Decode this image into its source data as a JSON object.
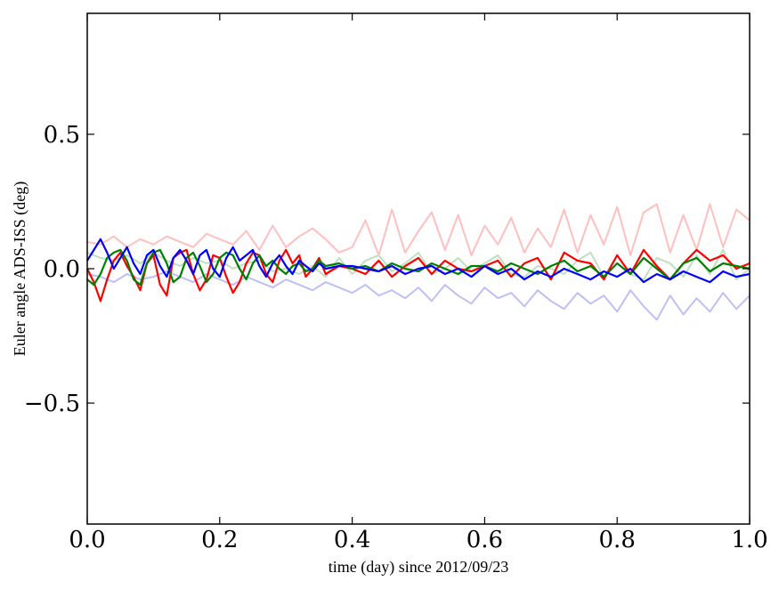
{
  "chart_data": {
    "type": "line",
    "xlabel": "time (day) since 2012/09/23",
    "ylabel": "Euler angle ADS-ISS (deg)",
    "xlim": [
      0.0,
      1.0
    ],
    "ylim": [
      -0.95,
      0.95
    ],
    "xticks": [
      0.0,
      0.2,
      0.4,
      0.6,
      0.8,
      1.0
    ],
    "xtick_labels": [
      "0.0",
      "0.2",
      "0.4",
      "0.6",
      "0.8",
      "1.0"
    ],
    "yticks": [
      -0.5,
      0.0,
      0.5
    ],
    "ytick_labels": [
      "−0.5",
      "0.0",
      "0.5"
    ],
    "grid": false,
    "legend": "none",
    "series": [
      {
        "color": "#ffbfbf",
        "x": [
          0.0,
          0.02,
          0.04,
          0.06,
          0.08,
          0.1,
          0.12,
          0.14,
          0.16,
          0.18,
          0.2,
          0.22,
          0.24,
          0.26,
          0.28,
          0.3,
          0.32,
          0.34,
          0.36,
          0.38,
          0.4,
          0.42,
          0.44,
          0.46,
          0.48,
          0.5,
          0.52,
          0.54,
          0.56,
          0.58,
          0.6,
          0.62,
          0.64,
          0.66,
          0.68,
          0.7,
          0.72,
          0.74,
          0.76,
          0.78,
          0.8,
          0.82,
          0.84,
          0.86,
          0.88,
          0.9,
          0.92,
          0.94,
          0.96,
          0.98,
          1.0
        ],
        "y": [
          0.1,
          0.09,
          0.12,
          0.08,
          0.11,
          0.09,
          0.12,
          0.1,
          0.08,
          0.13,
          0.11,
          0.09,
          0.14,
          0.07,
          0.16,
          0.08,
          0.12,
          0.15,
          0.11,
          0.06,
          0.08,
          0.18,
          0.05,
          0.22,
          0.06,
          0.14,
          0.21,
          0.07,
          0.2,
          0.05,
          0.16,
          0.09,
          0.19,
          0.06,
          0.15,
          0.08,
          0.22,
          0.06,
          0.2,
          0.09,
          0.23,
          0.05,
          0.21,
          0.24,
          0.06,
          0.2,
          0.07,
          0.24,
          0.08,
          0.22,
          0.18
        ]
      },
      {
        "color": "#bfdfbf",
        "x": [
          0.0,
          0.02,
          0.04,
          0.06,
          0.08,
          0.1,
          0.12,
          0.14,
          0.16,
          0.18,
          0.2,
          0.22,
          0.24,
          0.26,
          0.28,
          0.3,
          0.32,
          0.34,
          0.36,
          0.38,
          0.4,
          0.42,
          0.44,
          0.46,
          0.48,
          0.5,
          0.52,
          0.54,
          0.56,
          0.58,
          0.6,
          0.62,
          0.64,
          0.66,
          0.68,
          0.7,
          0.72,
          0.74,
          0.76,
          0.78,
          0.8,
          0.82,
          0.84,
          0.86,
          0.88,
          0.9,
          0.92,
          0.94,
          0.96,
          0.98,
          1.0
        ],
        "y": [
          0.06,
          0.04,
          0.03,
          0.05,
          0.02,
          0.06,
          0.03,
          0.01,
          0.04,
          0.02,
          0.03,
          0.0,
          0.02,
          0.03,
          -0.01,
          0.0,
          -0.02,
          0.01,
          -0.03,
          0.04,
          -0.02,
          0.03,
          0.05,
          -0.01,
          0.02,
          0.06,
          -0.02,
          0.0,
          0.04,
          -0.01,
          0.02,
          0.05,
          -0.02,
          -0.03,
          0.01,
          0.0,
          -0.02,
          0.03,
          0.06,
          -0.03,
          0.05,
          -0.02,
          -0.04,
          0.04,
          0.02,
          -0.03,
          0.05,
          -0.02,
          0.07,
          -0.04,
          0.0
        ]
      },
      {
        "color": "#bfbff7",
        "x": [
          0.0,
          0.02,
          0.04,
          0.06,
          0.08,
          0.1,
          0.12,
          0.14,
          0.16,
          0.18,
          0.2,
          0.22,
          0.24,
          0.26,
          0.28,
          0.3,
          0.32,
          0.34,
          0.36,
          0.38,
          0.4,
          0.42,
          0.44,
          0.46,
          0.48,
          0.5,
          0.52,
          0.54,
          0.56,
          0.58,
          0.6,
          0.62,
          0.64,
          0.66,
          0.68,
          0.7,
          0.72,
          0.74,
          0.76,
          0.78,
          0.8,
          0.82,
          0.84,
          0.86,
          0.88,
          0.9,
          0.92,
          0.94,
          0.96,
          0.98,
          1.0
        ],
        "y": [
          -0.02,
          -0.03,
          -0.05,
          -0.02,
          -0.04,
          -0.03,
          -0.01,
          -0.03,
          -0.05,
          -0.02,
          -0.04,
          -0.06,
          -0.03,
          -0.05,
          -0.07,
          -0.04,
          -0.06,
          -0.08,
          -0.05,
          -0.07,
          -0.09,
          -0.06,
          -0.1,
          -0.08,
          -0.11,
          -0.07,
          -0.12,
          -0.06,
          -0.1,
          -0.13,
          -0.07,
          -0.11,
          -0.09,
          -0.14,
          -0.08,
          -0.12,
          -0.15,
          -0.09,
          -0.13,
          -0.1,
          -0.16,
          -0.08,
          -0.14,
          -0.19,
          -0.1,
          -0.17,
          -0.11,
          -0.16,
          -0.09,
          -0.15,
          -0.1
        ]
      },
      {
        "color": "#ff0000",
        "x": [
          0.0,
          0.01,
          0.02,
          0.03,
          0.04,
          0.05,
          0.06,
          0.07,
          0.08,
          0.09,
          0.1,
          0.11,
          0.12,
          0.13,
          0.14,
          0.15,
          0.16,
          0.17,
          0.18,
          0.19,
          0.2,
          0.21,
          0.22,
          0.23,
          0.24,
          0.25,
          0.26,
          0.27,
          0.28,
          0.29,
          0.3,
          0.31,
          0.32,
          0.33,
          0.34,
          0.35,
          0.36,
          0.38,
          0.4,
          0.42,
          0.44,
          0.46,
          0.48,
          0.5,
          0.52,
          0.54,
          0.56,
          0.58,
          0.6,
          0.62,
          0.64,
          0.66,
          0.68,
          0.7,
          0.72,
          0.74,
          0.76,
          0.78,
          0.8,
          0.82,
          0.84,
          0.86,
          0.88,
          0.9,
          0.92,
          0.94,
          0.96,
          0.98,
          1.0
        ],
        "y": [
          0.0,
          -0.05,
          -0.12,
          -0.04,
          0.03,
          0.06,
          0.01,
          -0.03,
          -0.08,
          0.02,
          0.05,
          -0.06,
          -0.1,
          0.04,
          0.06,
          0.07,
          -0.02,
          -0.08,
          -0.04,
          0.05,
          0.04,
          -0.03,
          -0.09,
          -0.05,
          0.02,
          0.06,
          0.05,
          -0.02,
          -0.05,
          0.03,
          0.07,
          0.02,
          0.05,
          -0.03,
          0.0,
          0.04,
          -0.02,
          0.01,
          0.0,
          -0.02,
          0.03,
          -0.03,
          0.01,
          0.04,
          -0.02,
          0.03,
          0.0,
          -0.01,
          0.01,
          0.03,
          -0.03,
          0.02,
          0.04,
          -0.04,
          0.06,
          0.03,
          0.02,
          -0.04,
          0.05,
          -0.02,
          0.07,
          0.01,
          -0.04,
          0.02,
          0.07,
          0.03,
          0.05,
          0.0,
          0.02
        ]
      },
      {
        "color": "#008000",
        "x": [
          0.0,
          0.01,
          0.02,
          0.03,
          0.04,
          0.05,
          0.06,
          0.07,
          0.08,
          0.09,
          0.1,
          0.11,
          0.12,
          0.13,
          0.14,
          0.15,
          0.16,
          0.17,
          0.18,
          0.19,
          0.2,
          0.21,
          0.22,
          0.23,
          0.24,
          0.25,
          0.26,
          0.27,
          0.28,
          0.29,
          0.3,
          0.31,
          0.32,
          0.33,
          0.34,
          0.35,
          0.36,
          0.38,
          0.4,
          0.42,
          0.44,
          0.46,
          0.48,
          0.5,
          0.52,
          0.54,
          0.56,
          0.58,
          0.6,
          0.62,
          0.64,
          0.66,
          0.68,
          0.7,
          0.72,
          0.74,
          0.76,
          0.78,
          0.8,
          0.82,
          0.84,
          0.86,
          0.88,
          0.9,
          0.92,
          0.94,
          0.96,
          0.98,
          1.0
        ],
        "y": [
          -0.04,
          -0.06,
          -0.02,
          0.04,
          0.06,
          0.07,
          0.03,
          -0.04,
          -0.06,
          0.02,
          0.06,
          0.07,
          0.02,
          -0.05,
          -0.03,
          0.04,
          0.06,
          0.01,
          -0.05,
          -0.02,
          0.04,
          0.06,
          0.05,
          0.0,
          -0.04,
          0.02,
          0.05,
          0.01,
          0.03,
          0.0,
          -0.02,
          0.01,
          0.02,
          -0.01,
          0.0,
          0.03,
          0.01,
          0.02,
          0.0,
          0.01,
          -0.01,
          0.02,
          0.0,
          -0.01,
          0.02,
          0.0,
          -0.02,
          0.01,
          0.01,
          -0.01,
          0.02,
          0.0,
          -0.02,
          0.01,
          0.03,
          -0.01,
          0.01,
          -0.03,
          0.02,
          -0.02,
          0.04,
          0.0,
          -0.04,
          0.02,
          0.04,
          -0.01,
          0.02,
          0.01,
          0.0
        ]
      },
      {
        "color": "#0000ff",
        "x": [
          0.0,
          0.01,
          0.02,
          0.03,
          0.04,
          0.05,
          0.06,
          0.07,
          0.08,
          0.09,
          0.1,
          0.11,
          0.12,
          0.13,
          0.14,
          0.15,
          0.16,
          0.17,
          0.18,
          0.19,
          0.2,
          0.21,
          0.22,
          0.23,
          0.24,
          0.25,
          0.26,
          0.27,
          0.28,
          0.29,
          0.3,
          0.31,
          0.32,
          0.33,
          0.34,
          0.35,
          0.36,
          0.38,
          0.4,
          0.42,
          0.44,
          0.46,
          0.48,
          0.5,
          0.52,
          0.54,
          0.56,
          0.58,
          0.6,
          0.62,
          0.64,
          0.66,
          0.68,
          0.7,
          0.72,
          0.74,
          0.76,
          0.78,
          0.8,
          0.82,
          0.84,
          0.86,
          0.88,
          0.9,
          0.92,
          0.94,
          0.96,
          0.98,
          1.0
        ],
        "y": [
          0.03,
          0.07,
          0.11,
          0.06,
          0.0,
          0.04,
          0.08,
          0.02,
          -0.02,
          0.05,
          0.07,
          0.01,
          -0.03,
          0.04,
          0.07,
          0.03,
          -0.02,
          0.05,
          0.07,
          0.0,
          -0.03,
          0.04,
          0.08,
          0.03,
          0.05,
          0.07,
          0.01,
          -0.03,
          0.02,
          0.05,
          0.01,
          -0.02,
          0.03,
          0.01,
          -0.01,
          0.02,
          0.0,
          0.01,
          0.01,
          0.0,
          -0.01,
          0.01,
          -0.02,
          0.0,
          0.01,
          -0.02,
          0.0,
          -0.03,
          0.01,
          -0.02,
          0.0,
          -0.04,
          -0.01,
          -0.03,
          0.0,
          -0.02,
          -0.04,
          -0.01,
          -0.03,
          0.0,
          -0.05,
          -0.02,
          -0.04,
          -0.01,
          -0.03,
          -0.05,
          -0.01,
          -0.03,
          -0.02
        ]
      }
    ]
  }
}
